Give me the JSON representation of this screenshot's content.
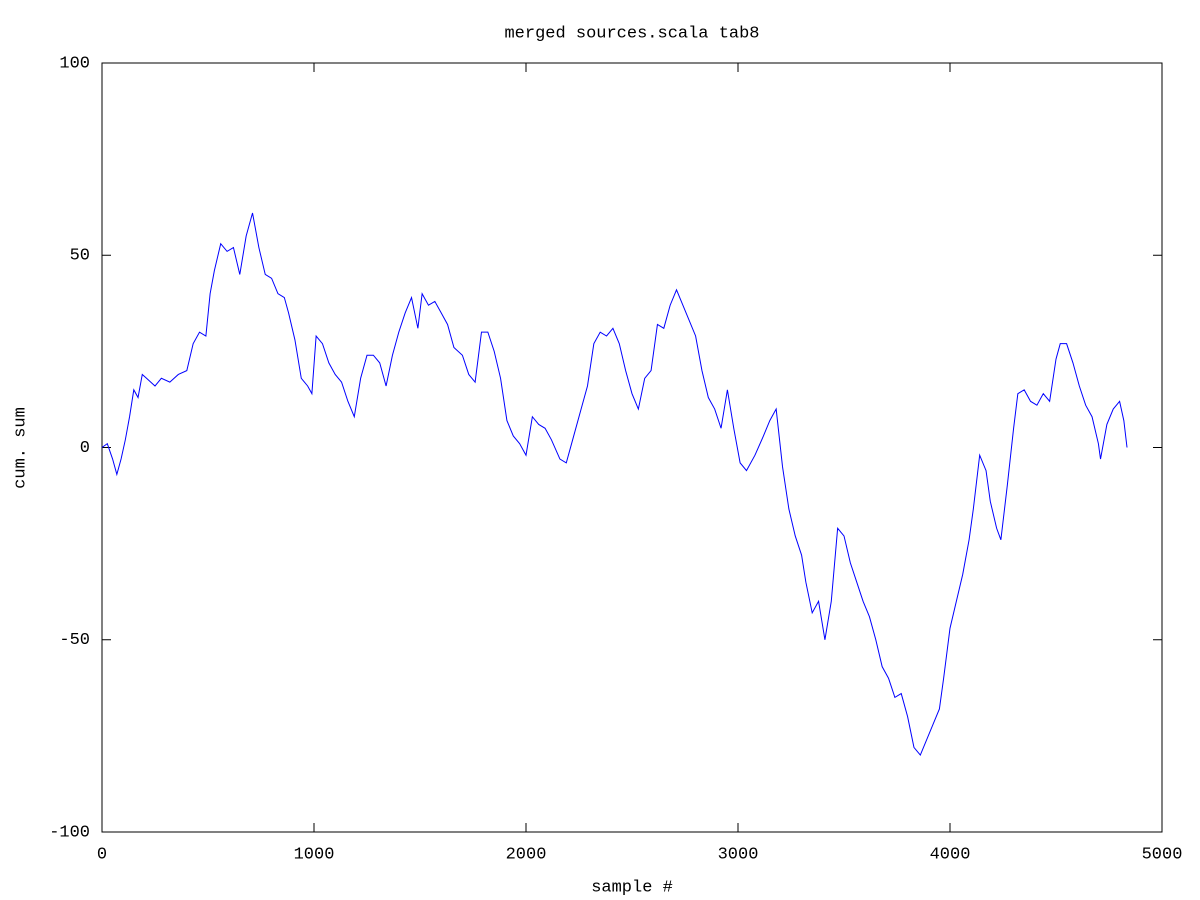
{
  "chart_data": {
    "type": "line",
    "title": "merged sources.scala tab8",
    "x_label": "sample #",
    "y_label": "cum. sum",
    "x": [
      0,
      25,
      50,
      70,
      90,
      110,
      130,
      150,
      170,
      190,
      210,
      250,
      280,
      320,
      360,
      400,
      430,
      460,
      490,
      510,
      530,
      560,
      590,
      620,
      650,
      680,
      710,
      740,
      770,
      800,
      830,
      860,
      880,
      910,
      940,
      970,
      990,
      1010,
      1040,
      1070,
      1100,
      1130,
      1160,
      1190,
      1220,
      1250,
      1280,
      1310,
      1340,
      1370,
      1400,
      1430,
      1460,
      1490,
      1510,
      1540,
      1570,
      1600,
      1630,
      1660,
      1700,
      1730,
      1760,
      1790,
      1820,
      1850,
      1880,
      1910,
      1940,
      1970,
      2000,
      2030,
      2060,
      2090,
      2120,
      2160,
      2190,
      2220,
      2260,
      2290,
      2320,
      2350,
      2380,
      2410,
      2440,
      2470,
      2500,
      2530,
      2560,
      2590,
      2620,
      2650,
      2680,
      2710,
      2740,
      2770,
      2800,
      2830,
      2860,
      2890,
      2920,
      2950,
      2980,
      3010,
      3040,
      3080,
      3120,
      3150,
      3180,
      3210,
      3240,
      3270,
      3300,
      3320,
      3350,
      3380,
      3410,
      3440,
      3470,
      3500,
      3530,
      3560,
      3590,
      3620,
      3650,
      3680,
      3710,
      3740,
      3770,
      3800,
      3830,
      3860,
      3890,
      3920,
      3950,
      3970,
      4000,
      4030,
      4060,
      4090,
      4110,
      4140,
      4170,
      4190,
      4220,
      4240,
      4270,
      4300,
      4320,
      4350,
      4380,
      4410,
      4440,
      4470,
      4500,
      4520,
      4550,
      4580,
      4610,
      4640,
      4670,
      4700,
      4710,
      4740,
      4770,
      4800,
      4820,
      4835
    ],
    "series": [
      {
        "color": "#0000ff",
        "values": [
          0,
          1,
          -3,
          -7,
          -3,
          2,
          8,
          15,
          13,
          19,
          18,
          16,
          18,
          17,
          19,
          20,
          27,
          30,
          29,
          40,
          46,
          53,
          51,
          52,
          45,
          55,
          61,
          52,
          45,
          44,
          40,
          39,
          35,
          28,
          18,
          16,
          14,
          29,
          27,
          22,
          19,
          17,
          12,
          8,
          18,
          24,
          24,
          22,
          16,
          24,
          30,
          35,
          39,
          31,
          40,
          37,
          38,
          35,
          32,
          26,
          24,
          19,
          17,
          30,
          30,
          25,
          18,
          7,
          3,
          1,
          -2,
          8,
          6,
          5,
          2,
          -3,
          -4,
          2,
          10,
          16,
          27,
          30,
          29,
          31,
          27,
          20,
          14,
          10,
          18,
          20,
          32,
          31,
          37,
          41,
          37,
          33,
          29,
          20,
          13,
          10,
          5,
          15,
          5,
          -4,
          -6,
          -2,
          3,
          7,
          10,
          -5,
          -16,
          -23,
          -28,
          -35,
          -43,
          -40,
          -50,
          -40,
          -21,
          -23,
          -30,
          -35,
          -40,
          -44,
          -50,
          -57,
          -60,
          -65,
          -64,
          -70,
          -78,
          -80,
          -76,
          -72,
          -68,
          -60,
          -47,
          -40,
          -33,
          -24,
          -16,
          -2,
          -6,
          -14,
          -21,
          -24,
          -10,
          5,
          14,
          15,
          12,
          11,
          14,
          12,
          23,
          27,
          27,
          22,
          16,
          11,
          8,
          1,
          -3,
          6,
          10,
          12,
          7,
          0
        ]
      }
    ],
    "xlim": [
      0,
      5000
    ],
    "xticks": [
      0,
      1000,
      2000,
      3000,
      4000,
      5000
    ],
    "ylim": [
      -100,
      100
    ],
    "yticks": [
      -100,
      -50,
      0,
      50,
      100
    ]
  }
}
